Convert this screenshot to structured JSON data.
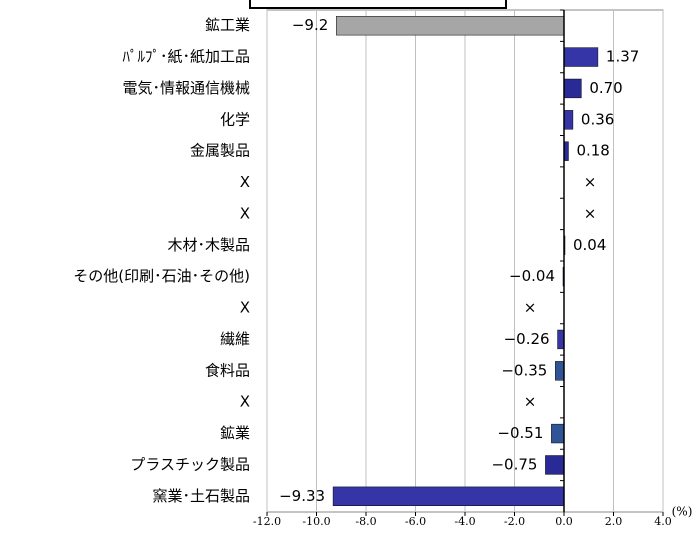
{
  "chart_data": {
    "type": "bar",
    "orientation": "horizontal",
    "categories": [
      "鉱工業",
      "ﾊﾟﾙﾌﾟ･紙･紙加工品",
      "電気･情報通信機械",
      "化学",
      "金属製品",
      "X",
      "X",
      "木材･木製品",
      "その他(印刷･石油･その他)",
      "X",
      "繊維",
      "食料品",
      "X",
      "鉱業",
      "プラスチック製品",
      "窯業･土石製品"
    ],
    "values": [
      -9.2,
      1.37,
      0.7,
      0.36,
      0.18,
      null,
      null,
      0.04,
      -0.04,
      null,
      -0.26,
      -0.35,
      null,
      -0.51,
      -0.75,
      -9.33
    ],
    "value_labels": [
      "−9.2",
      "1.37",
      "0.70",
      "0.36",
      "0.18",
      "×",
      "×",
      "0.04",
      "−0.04",
      "×",
      "−0.26",
      "−0.35",
      "×",
      "−0.51",
      "−0.75",
      "−9.33"
    ],
    "colors": [
      "#a6a6a6",
      "#3535a8",
      "#2a2a96",
      "#3535a8",
      "#2a2a96",
      "#3535a8",
      "#3535a8",
      "#3535a8",
      "#2a2a96",
      "#3535a8",
      "#3535a8",
      "#2f5597",
      "#3535a8",
      "#2f5597",
      "#2a2a96",
      "#3535a8"
    ],
    "xlim": [
      -12,
      4
    ],
    "xticks": [
      {
        "value": -12,
        "label": "-12.0"
      },
      {
        "value": -10,
        "label": "-10.0"
      },
      {
        "value": -8,
        "label": "-8.0"
      },
      {
        "value": -6,
        "label": "-6.0"
      },
      {
        "value": -4,
        "label": "-4.0"
      },
      {
        "value": -2,
        "label": "-2.0"
      },
      {
        "value": 0,
        "label": "0.0"
      },
      {
        "value": 2,
        "label": "2.0"
      },
      {
        "value": 4,
        "label": "4.0"
      }
    ],
    "x_unit": "(%)",
    "grid": true
  }
}
